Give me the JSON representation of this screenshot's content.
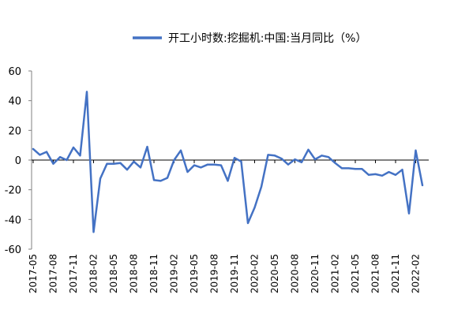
{
  "chart_data": {
    "type": "line",
    "series": [
      {
        "name": "开工小时数:挖掘机:中国:当月同比（%）",
        "color": "#4472C4",
        "values": [
          7.5,
          3.5,
          5.5,
          -2.5,
          2.0,
          0.0,
          8.5,
          3.0,
          46.0,
          -48.5,
          -12.5,
          -2.5,
          -2.5,
          -2.0,
          -6.5,
          -1.0,
          -5.0,
          9.0,
          -13.5,
          -14.0,
          -12.0,
          0.0,
          6.5,
          -8.0,
          -3.5,
          -5.0,
          -3.0,
          -3.0,
          -3.5,
          -14.0,
          1.5,
          -1.0,
          -42.5,
          -32.0,
          -18.0,
          3.5,
          3.0,
          1.0,
          -3.0,
          0.5,
          -1.5,
          7.0,
          0.5,
          3.0,
          2.0,
          -2.0,
          -5.5,
          -5.5,
          -6.0,
          -6.0,
          -10.0,
          -9.5,
          -10.5,
          -8.0,
          -10.0,
          -6.5,
          -36.0,
          6.5,
          -17.0
        ]
      }
    ],
    "x_tick_labels": [
      "2017-05",
      "2017-08",
      "2017-11",
      "2018-02",
      "2018-05",
      "2018-08",
      "2018-11",
      "2019-02",
      "2019-05",
      "2019-08",
      "2019-11",
      "2020-02",
      "2020-05",
      "2020-08",
      "2020-11",
      "2021-02",
      "2021-05",
      "2021-08",
      "2021-11",
      "2022-02"
    ],
    "y_ticks": [
      "60",
      "40",
      "20",
      "0",
      "-20",
      "-40",
      "-60"
    ],
    "ylim": [
      -60,
      60
    ],
    "grid": false,
    "legend_position": "top-center"
  }
}
